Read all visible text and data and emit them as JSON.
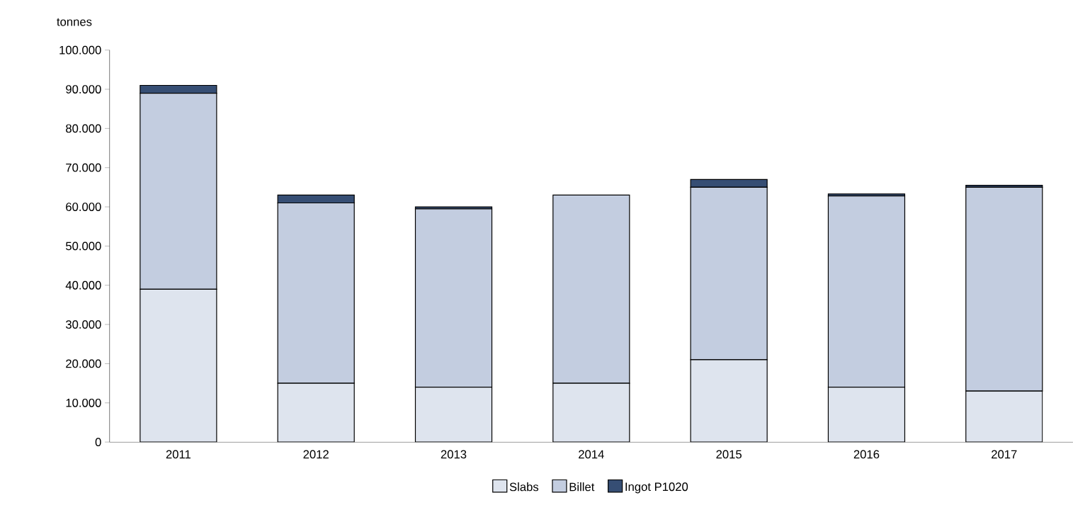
{
  "chart_data": {
    "type": "bar",
    "stacked": true,
    "ylabel": "tonnes",
    "categories": [
      "2011",
      "2012",
      "2013",
      "2014",
      "2015",
      "2016",
      "2017"
    ],
    "series": [
      {
        "name": "Slabs",
        "color": "#dee4ee",
        "values": [
          39000,
          15000,
          14000,
          15000,
          21000,
          14000,
          13000
        ]
      },
      {
        "name": "Billet",
        "color": "#c3cde0",
        "values": [
          50000,
          46000,
          45500,
          48000,
          44000,
          48800,
          52000
        ]
      },
      {
        "name": "Ingot P1020",
        "color": "#364e74",
        "values": [
          2000,
          2000,
          500,
          0,
          2000,
          500,
          500
        ]
      }
    ],
    "ylim": [
      0,
      100000
    ],
    "yticks": [
      {
        "value": 0,
        "label": "0"
      },
      {
        "value": 10000,
        "label": "10.000"
      },
      {
        "value": 20000,
        "label": "20.000"
      },
      {
        "value": 30000,
        "label": "30.000"
      },
      {
        "value": 40000,
        "label": "40.000"
      },
      {
        "value": 50000,
        "label": "50.000"
      },
      {
        "value": 60000,
        "label": "60.000"
      },
      {
        "value": 70000,
        "label": "70.000"
      },
      {
        "value": 80000,
        "label": "80.000"
      },
      {
        "value": 90000,
        "label": "90.000"
      },
      {
        "value": 100000,
        "label": "100.000"
      }
    ],
    "legend": "bottom",
    "grid": false
  }
}
